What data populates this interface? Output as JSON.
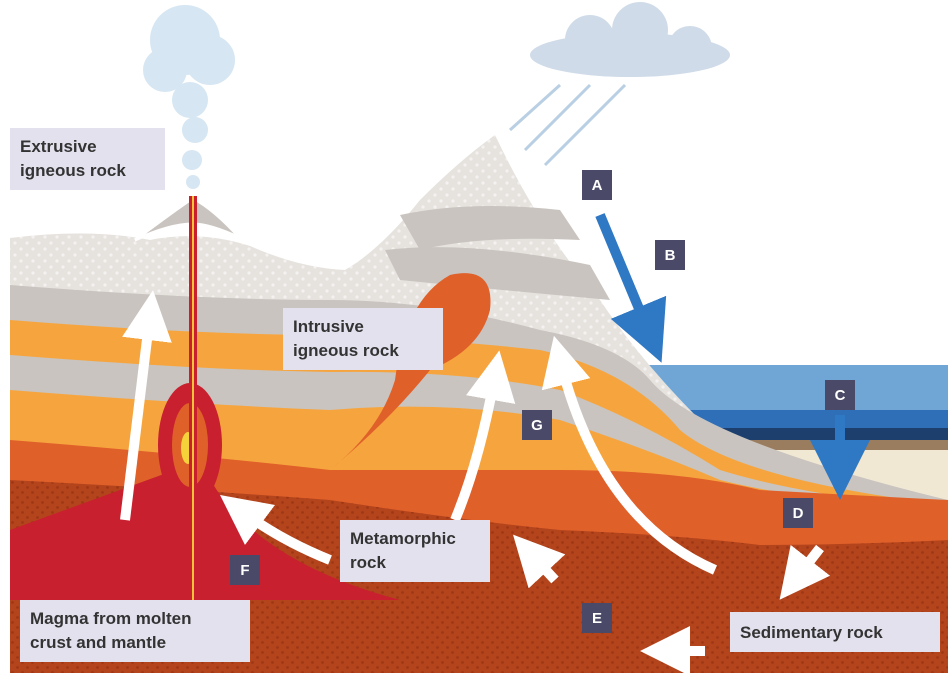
{
  "labels": [
    {
      "lines": [
        "Extrusive",
        "igneous rock"
      ]
    },
    {
      "lines": [
        "Intrusive",
        "igneous rock"
      ]
    },
    {
      "lines": [
        "Metamorphic",
        "rock"
      ]
    },
    {
      "lines": [
        "Magma from molten",
        "crust and mantle"
      ]
    },
    {
      "lines": [
        "Sedimentary rock"
      ]
    }
  ],
  "markers": [
    "A",
    "B",
    "C",
    "D",
    "E",
    "F",
    "G"
  ]
}
